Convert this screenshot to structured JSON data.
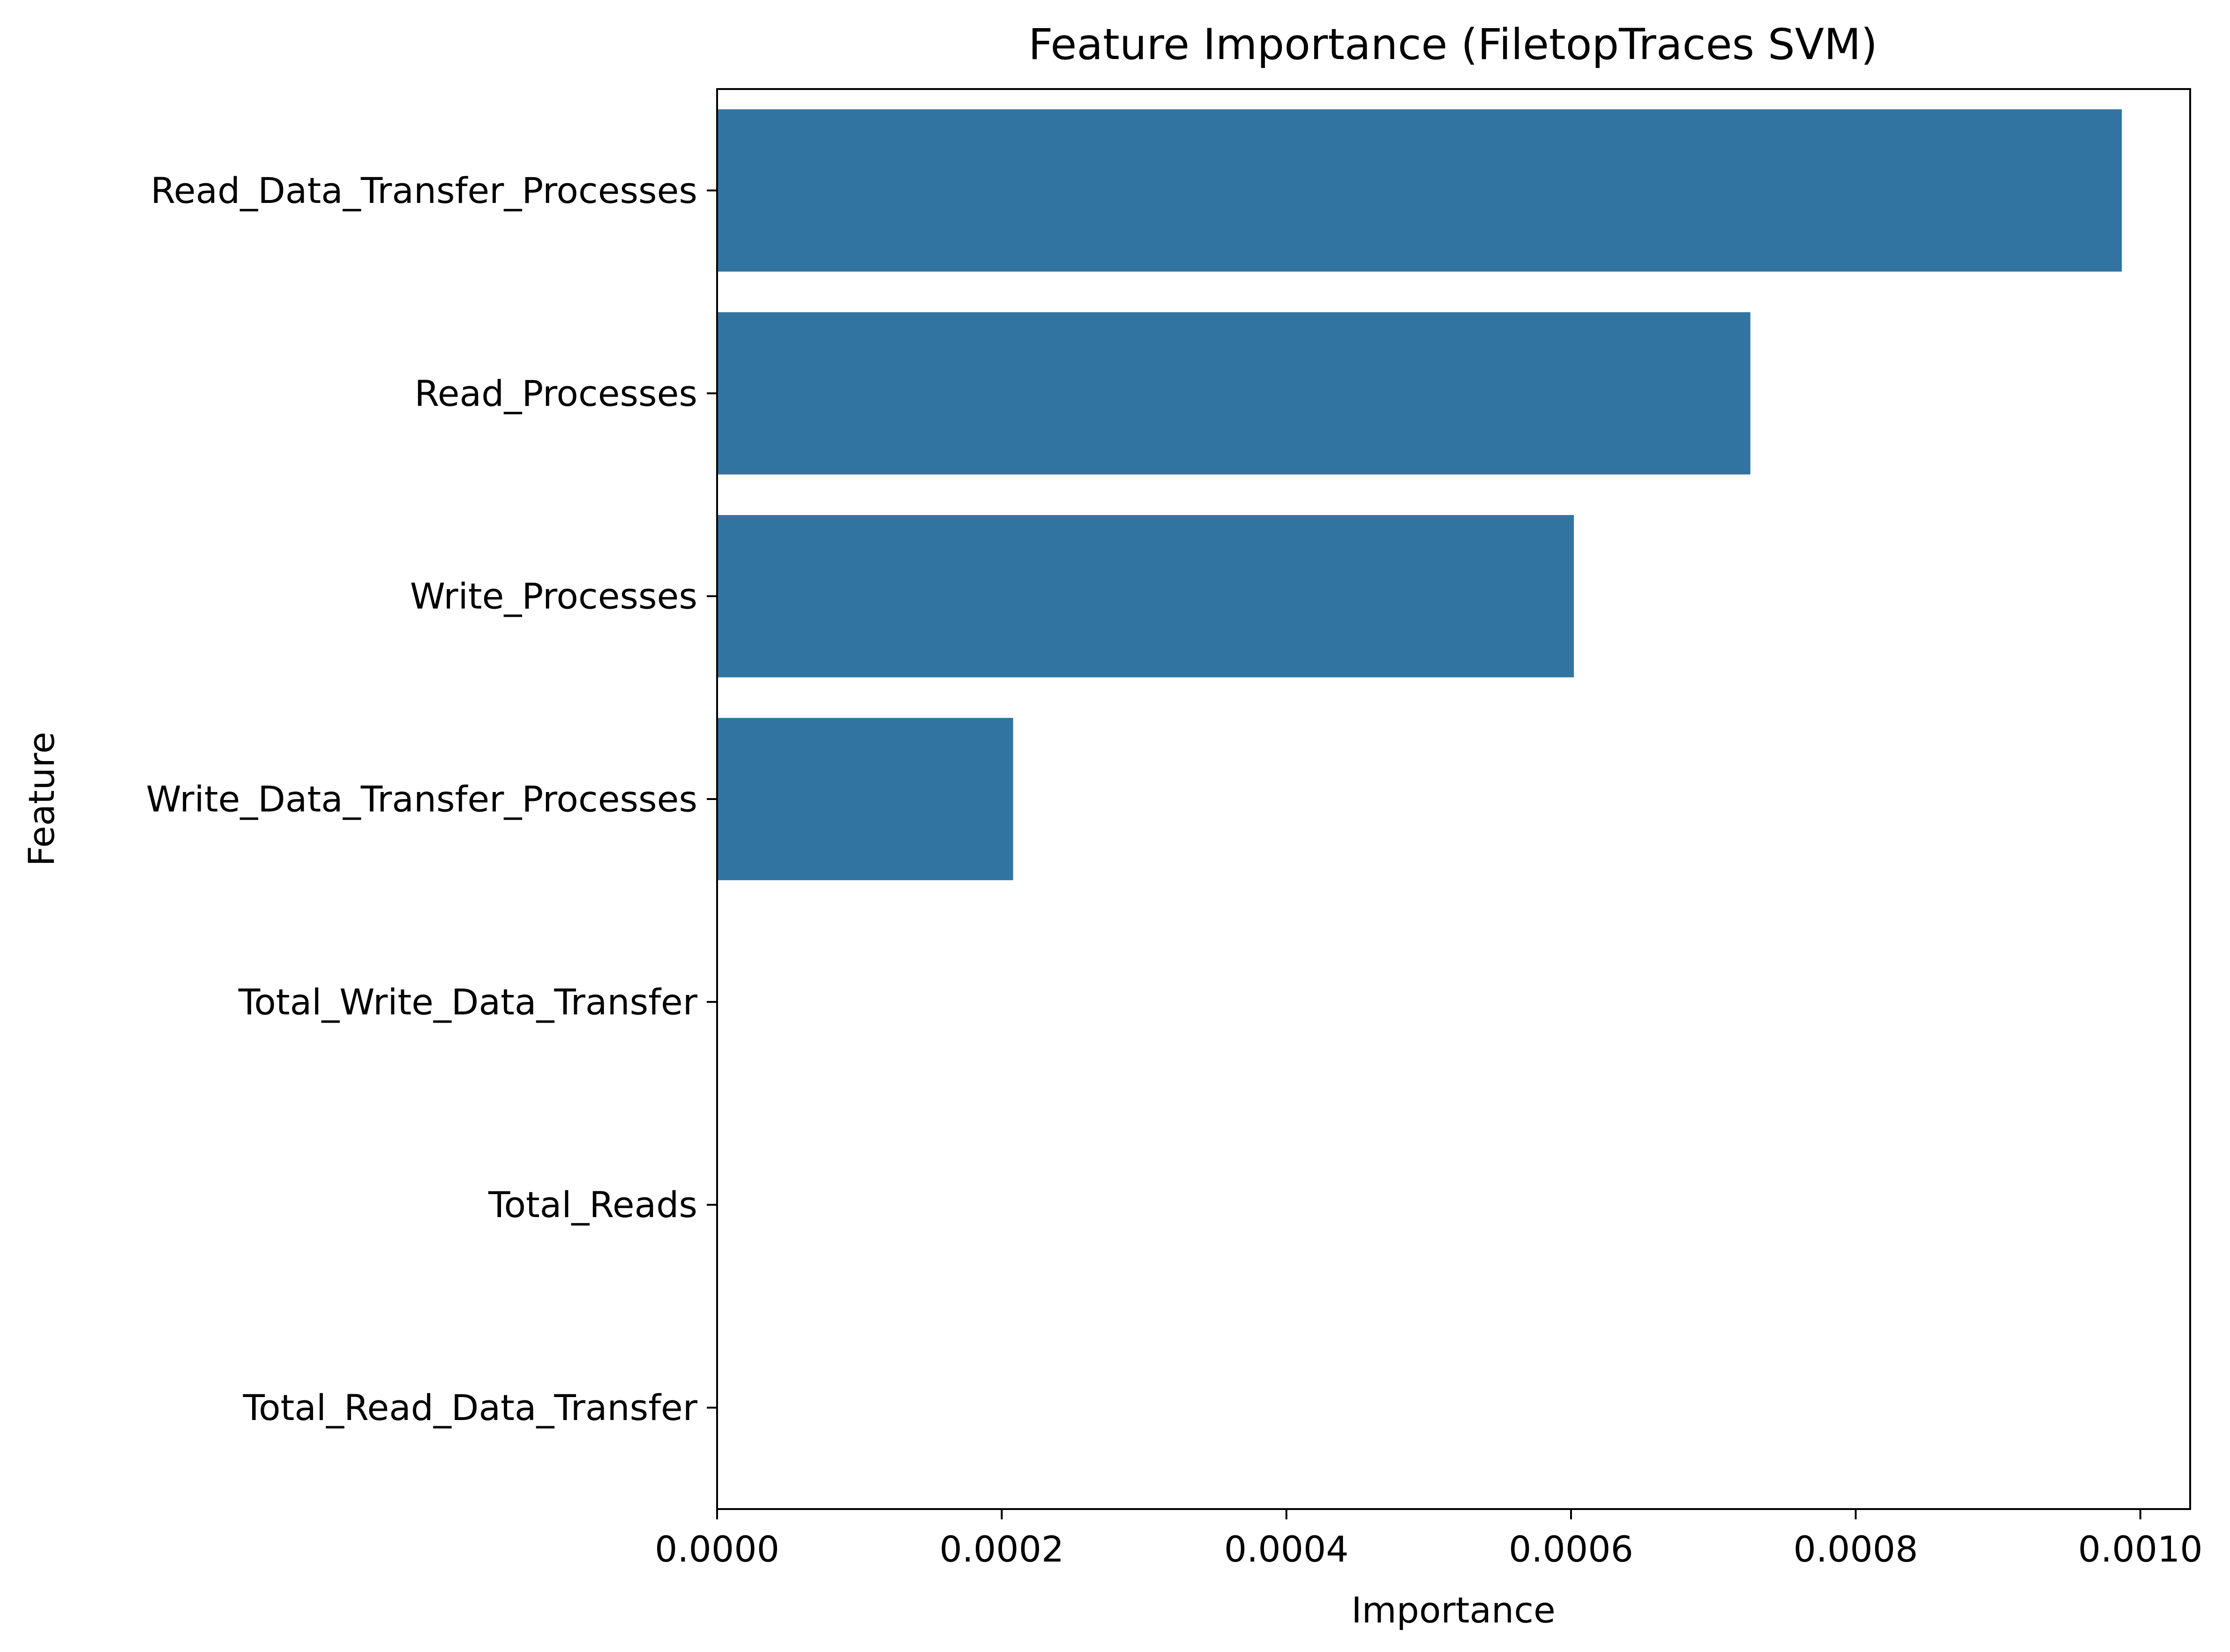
{
  "chart_data": {
    "type": "bar",
    "orientation": "horizontal",
    "title": "Feature Importance (FiletopTraces SVM)",
    "xlabel": "Importance",
    "ylabel": "Feature",
    "categories": [
      "Read_Data_Transfer_Processes",
      "Read_Processes",
      "Write_Processes",
      "Write_Data_Transfer_Processes",
      "Total_Write_Data_Transfer",
      "Total_Reads",
      "Total_Read_Data_Transfer"
    ],
    "values": [
      0.000987,
      0.000726,
      0.000602,
      0.000208,
      0.0,
      0.0,
      0.0
    ],
    "xlim": [
      0.0,
      0.001035
    ],
    "xticks": [
      0.0,
      0.0002,
      0.0004,
      0.0006,
      0.0008,
      0.001
    ],
    "xtick_labels": [
      "0.0000",
      "0.0002",
      "0.0004",
      "0.0006",
      "0.0008",
      "0.0010"
    ],
    "bar_color": "#3274a1",
    "grid": false,
    "legend": "none"
  }
}
